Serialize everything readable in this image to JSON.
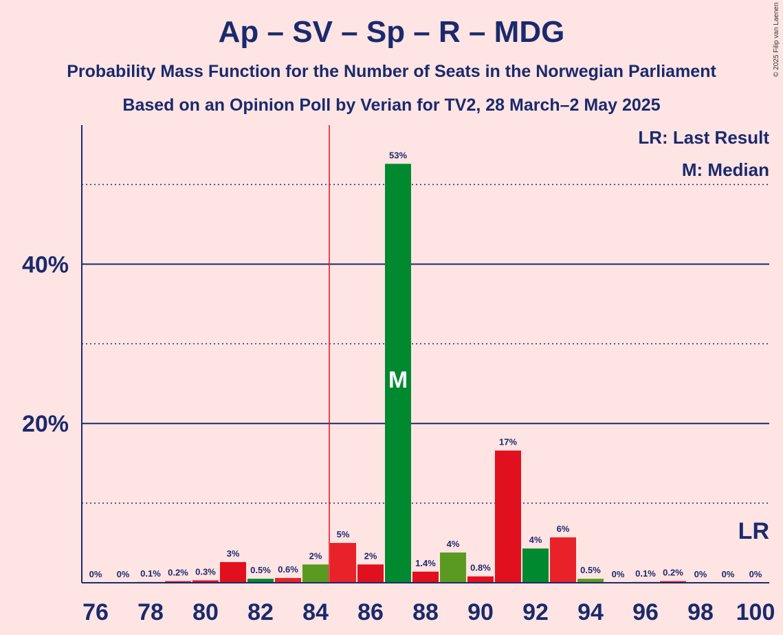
{
  "title": "Ap – SV – Sp – R – MDG",
  "subtitle1": "Probability Mass Function for the Number of Seats in the Norwegian Parliament",
  "subtitle2": "Based on an Opinion Poll by Verian for TV2, 28 March–2 May 2025",
  "copyright": "© 2025 Filip van Laenen",
  "legend": {
    "last_result": "LR: Last Result",
    "median": "M: Median"
  },
  "colors": {
    "background": "#ffe4e4",
    "text": "#1a2a6c",
    "red": "#e0101e",
    "red_light": "#e82228",
    "green": "#00892f",
    "olive": "#5a9a20",
    "last_result_line": "#e0101e"
  },
  "chart_data": {
    "type": "bar",
    "xlabel": "",
    "ylabel": "",
    "ylim": [
      0,
      57
    ],
    "yticks": [
      20,
      40
    ],
    "ytick_labels": [
      "20%",
      "40%"
    ],
    "minor_gridlines": [
      10,
      30,
      50
    ],
    "x_tick_labels": [
      "76",
      "78",
      "80",
      "82",
      "84",
      "86",
      "88",
      "90",
      "92",
      "94",
      "96",
      "98",
      "100"
    ],
    "categories": [
      76,
      77,
      78,
      79,
      80,
      81,
      82,
      83,
      84,
      85,
      86,
      87,
      88,
      89,
      90,
      91,
      92,
      93,
      94,
      95,
      96,
      97,
      98,
      99,
      100
    ],
    "values": [
      0,
      0,
      0.1,
      0.2,
      0.3,
      2.6,
      0.5,
      0.6,
      2.3,
      5.0,
      2.3,
      52.6,
      1.4,
      3.8,
      0.8,
      16.6,
      4.3,
      5.7,
      0.5,
      0,
      0.1,
      0.2,
      0,
      0,
      0
    ],
    "labels": [
      "0%",
      "0%",
      "0.1%",
      "0.2%",
      "0.3%",
      "3%",
      "0.5%",
      "0.6%",
      "2%",
      "5%",
      "2%",
      "53%",
      "1.4%",
      "4%",
      "0.8%",
      "17%",
      "4%",
      "6%",
      "0.5%",
      "0%",
      "0.1%",
      "0.2%",
      "0%",
      "0%",
      "0%"
    ],
    "bar_colors": [
      "red",
      "red",
      "red",
      "red",
      "red",
      "red",
      "green",
      "red_light",
      "olive",
      "red_light",
      "red",
      "green",
      "red",
      "olive",
      "red",
      "red",
      "green",
      "red_light",
      "olive",
      "red",
      "red",
      "red",
      "red",
      "red",
      "red"
    ],
    "median": 87,
    "median_label": "M",
    "last_result_marker": 84.5,
    "last_result_label": "LR"
  }
}
